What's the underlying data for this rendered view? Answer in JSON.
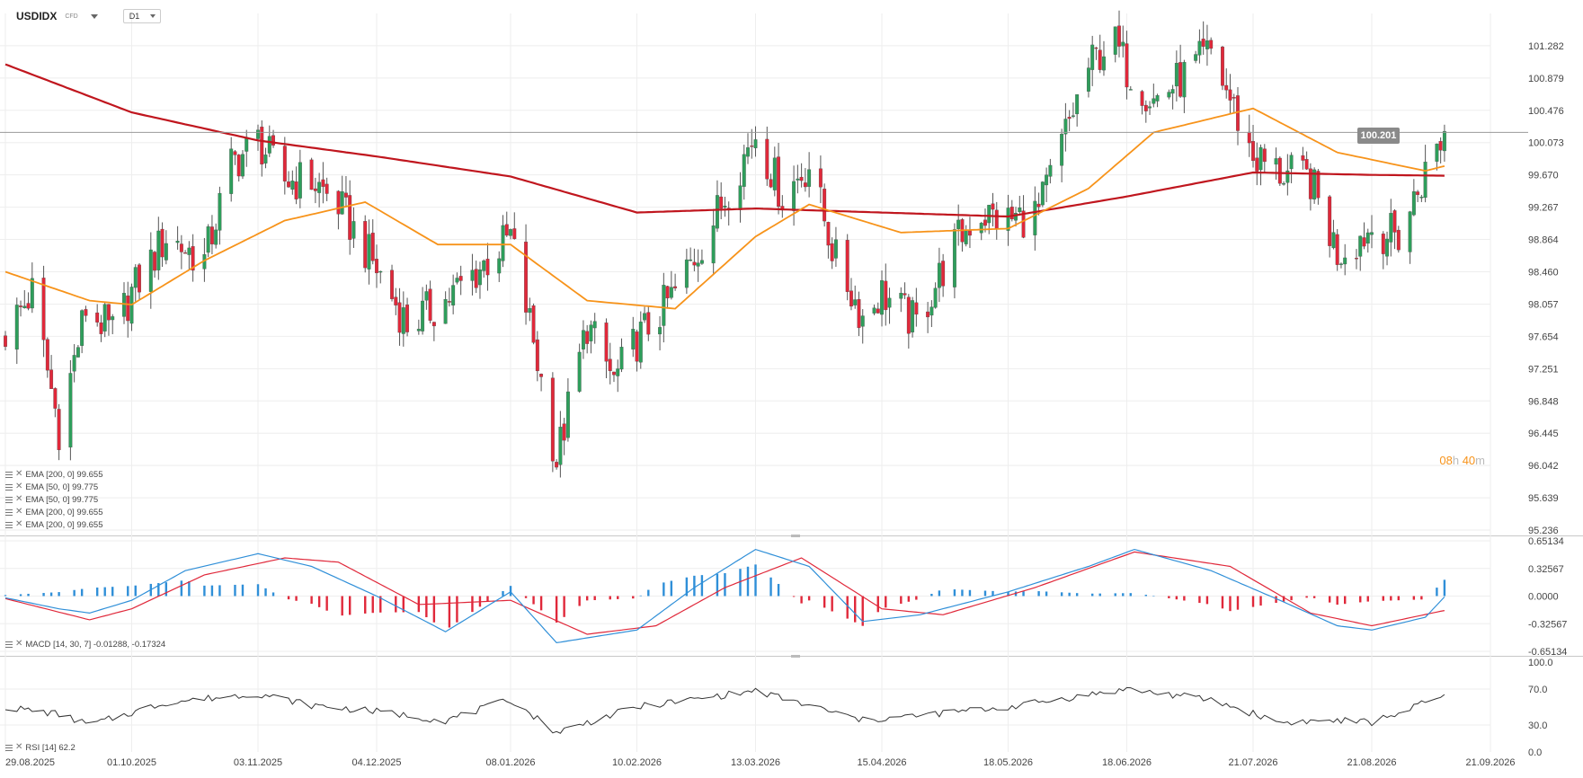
{
  "header": {
    "symbol": "USDIDX",
    "instrument_type": "CFD",
    "timeframe": "D1"
  },
  "price_axis": {
    "labels": [
      "101.282",
      "100.879",
      "100.476",
      "100.073",
      "99.670",
      "99.267",
      "98.864",
      "98.460",
      "98.057",
      "97.654",
      "97.251",
      "96.848",
      "96.445",
      "96.042",
      "95.639",
      "95.236"
    ],
    "current_price_label": "100.201",
    "current_price": 100.201
  },
  "macd_axis": {
    "labels": [
      "0.65134",
      "0.32567",
      "0.0000",
      "-0.32567",
      "-0.65134"
    ]
  },
  "rsi_axis": {
    "labels": [
      "100.0",
      "70.0",
      "30.0",
      "0.0"
    ]
  },
  "date_labels": [
    "29.08.2025",
    "01.10.2025",
    "03.11.2025",
    "04.12.2025",
    "08.01.2026",
    "10.02.2026",
    "13.03.2026",
    "15.04.2026",
    "18.05.2026",
    "18.06.2026",
    "21.07.2026",
    "21.08.2026",
    "21.09.2026"
  ],
  "price_legend": [
    "EMA [200, 0] 99.655",
    "EMA [50, 0] 99.775",
    "EMA [50, 0] 99.775",
    "EMA [200, 0] 99.655",
    "EMA [200, 0] 99.655"
  ],
  "macd_legend": "MACD [14, 30, 7] -0.01288, -0.17324",
  "rsi_legend": "RSI [14] 62.2",
  "countdown": {
    "hours": "08",
    "h_unit": "h",
    "minutes": "40",
    "m_unit": "m"
  },
  "colors": {
    "up": "#2e9e5b",
    "down": "#e0283a",
    "ema50": "#f7931a",
    "ema200": "#c0161e",
    "macd": "#2f8fd8",
    "signal": "#e0283a",
    "rsi": "#333333",
    "grid": "#eeeeee",
    "price_line": "#999999"
  },
  "chart_data": [
    {
      "type": "candlestick",
      "title": "USDIDX",
      "ylim": [
        95.236,
        101.685
      ],
      "x_range": [
        "2025-08-29",
        "2026-09-21"
      ],
      "ohlc_anchors": {
        "x": [
          "2025-08-29",
          "2025-09-05",
          "2025-09-12",
          "2025-09-19",
          "2025-09-26",
          "2025-10-01",
          "2025-10-10",
          "2025-10-20",
          "2025-10-27",
          "2025-11-03",
          "2025-11-10",
          "2025-11-17",
          "2025-11-24",
          "2025-12-04",
          "2025-12-12",
          "2025-12-22",
          "2026-01-02",
          "2026-01-08",
          "2026-01-14",
          "2026-01-20",
          "2026-01-28",
          "2026-02-04",
          "2026-02-10",
          "2026-02-20",
          "2026-03-02",
          "2026-03-09",
          "2026-03-13",
          "2026-03-20",
          "2026-03-27",
          "2026-04-03",
          "2026-04-10",
          "2026-04-15",
          "2026-04-24",
          "2026-05-04",
          "2026-05-10",
          "2026-05-18",
          "2026-05-26",
          "2026-06-02",
          "2026-06-08",
          "2026-06-14",
          "2026-06-18",
          "2026-06-25",
          "2026-07-03",
          "2026-07-10",
          "2026-07-21",
          "2026-07-28",
          "2026-08-05",
          "2026-08-12",
          "2026-08-21",
          "2026-08-28",
          "2026-09-04",
          "2026-09-09"
        ],
        "close": [
          97.7,
          98.2,
          96.5,
          98.0,
          97.7,
          98.2,
          98.9,
          98.6,
          99.8,
          100.1,
          99.6,
          99.6,
          99.3,
          98.5,
          97.8,
          98.1,
          98.6,
          98.9,
          97.6,
          96.1,
          97.8,
          97.1,
          97.6,
          98.2,
          99.1,
          99.8,
          100.2,
          99.4,
          99.8,
          98.6,
          97.9,
          98.2,
          97.8,
          98.8,
          99.2,
          99.1,
          99.2,
          100.2,
          101.0,
          101.4,
          101.0,
          100.6,
          100.9,
          101.2,
          99.9,
          99.7,
          99.6,
          98.7,
          99.0,
          98.9,
          99.7,
          100.2
        ]
      },
      "ema50_anchors": {
        "x": [
          "2025-08-29",
          "2025-09-20",
          "2025-10-01",
          "2025-10-20",
          "2025-11-10",
          "2025-12-01",
          "2025-12-20",
          "2026-01-08",
          "2026-01-28",
          "2026-02-20",
          "2026-03-13",
          "2026-03-27",
          "2026-04-20",
          "2026-05-18",
          "2026-06-08",
          "2026-06-25",
          "2026-07-21",
          "2026-08-12",
          "2026-09-04",
          "2026-09-09"
        ],
        "values": [
          98.46,
          98.1,
          98.05,
          98.6,
          99.1,
          99.33,
          98.8,
          98.8,
          98.1,
          98.0,
          98.9,
          99.3,
          98.95,
          99.0,
          99.5,
          100.2,
          100.5,
          99.95,
          99.72,
          99.78
        ]
      },
      "ema200_anchors": {
        "x": [
          "2025-08-29",
          "2025-10-01",
          "2025-11-03",
          "2025-12-04",
          "2026-01-08",
          "2026-02-10",
          "2026-03-13",
          "2026-04-15",
          "2026-05-18",
          "2026-06-18",
          "2026-07-21",
          "2026-08-21",
          "2026-09-09"
        ],
        "values": [
          101.05,
          100.45,
          100.1,
          99.9,
          99.65,
          99.2,
          99.25,
          99.2,
          99.15,
          99.4,
          99.7,
          99.67,
          99.66
        ]
      }
    },
    {
      "type": "bar",
      "title": "MACD",
      "ylim": [
        -0.65134,
        0.65134
      ],
      "macd_anchors": {
        "x": [
          "2025-08-29",
          "2025-09-12",
          "2025-09-20",
          "2025-10-01",
          "2025-10-15",
          "2025-11-03",
          "2025-11-17",
          "2025-12-04",
          "2025-12-22",
          "2026-01-08",
          "2026-01-20",
          "2026-02-10",
          "2026-02-25",
          "2026-03-13",
          "2026-03-27",
          "2026-04-10",
          "2026-04-25",
          "2026-05-18",
          "2026-06-08",
          "2026-06-20",
          "2026-07-10",
          "2026-07-28",
          "2026-08-12",
          "2026-08-21",
          "2026-09-04",
          "2026-09-09"
        ],
        "values": [
          -0.02,
          -0.15,
          -0.2,
          -0.05,
          0.3,
          0.5,
          0.35,
          0.0,
          -0.42,
          0.05,
          -0.55,
          -0.4,
          0.1,
          0.55,
          0.35,
          -0.3,
          -0.22,
          0.05,
          0.35,
          0.55,
          0.3,
          -0.05,
          -0.35,
          -0.4,
          -0.25,
          -0.01
        ]
      },
      "signal_anchors": {
        "x": [
          "2025-08-29",
          "2025-09-20",
          "2025-10-01",
          "2025-10-20",
          "2025-11-10",
          "2025-11-24",
          "2025-12-15",
          "2026-01-08",
          "2026-01-28",
          "2026-02-15",
          "2026-03-05",
          "2026-03-25",
          "2026-04-15",
          "2026-05-01",
          "2026-05-25",
          "2026-06-20",
          "2026-07-15",
          "2026-08-05",
          "2026-08-21",
          "2026-09-09"
        ],
        "values": [
          -0.03,
          -0.28,
          -0.15,
          0.25,
          0.45,
          0.4,
          -0.1,
          -0.05,
          -0.45,
          -0.35,
          0.1,
          0.45,
          -0.15,
          -0.22,
          0.1,
          0.52,
          0.35,
          -0.2,
          -0.35,
          -0.17
        ]
      }
    },
    {
      "type": "line",
      "title": "RSI",
      "ylim": [
        0,
        100
      ],
      "rsi_anchors": {
        "x": [
          "2025-08-29",
          "2025-09-12",
          "2025-09-20",
          "2025-10-10",
          "2025-11-03",
          "2025-11-17",
          "2025-12-04",
          "2025-12-22",
          "2026-01-08",
          "2026-01-20",
          "2026-02-10",
          "2026-03-13",
          "2026-04-10",
          "2026-05-18",
          "2026-06-18",
          "2026-07-10",
          "2026-07-28",
          "2026-08-12",
          "2026-08-21",
          "2026-09-09"
        ],
        "values": [
          50,
          42,
          30,
          55,
          65,
          52,
          45,
          35,
          58,
          22,
          50,
          68,
          35,
          50,
          70,
          58,
          33,
          35,
          33,
          62.2
        ]
      }
    }
  ]
}
